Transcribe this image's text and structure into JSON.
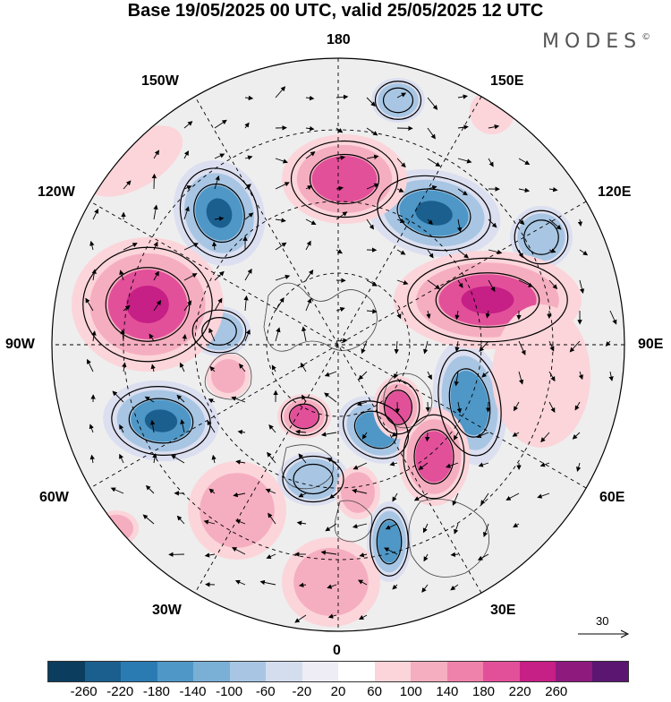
{
  "title": "Base 19/05/2025 00 UTC, valid 25/05/2025 12 UTC",
  "brand": "MODES",
  "brand_mark": "©",
  "longitude_labels": {
    "top": "180",
    "bottom": "0",
    "left": "90W",
    "right": "90E",
    "upper_left_1": "150W",
    "upper_left_2": "120W",
    "upper_right_1": "150E",
    "upper_right_2": "120E",
    "lower_left_1": "60W",
    "lower_left_2": "30W",
    "lower_right_1": "60E",
    "lower_right_2": "30E"
  },
  "wind_key": {
    "value": "30"
  },
  "colorbar": {
    "colors": [
      "#0b3d5e",
      "#1b5f8e",
      "#2b7bb3",
      "#4f97c6",
      "#7aafd6",
      "#a8c6e3",
      "#d3ddee",
      "#eeedf5",
      "#ffffff",
      "#fbd5da",
      "#f5aec0",
      "#ef82aa",
      "#e2509a",
      "#c61f85",
      "#8e1a7e",
      "#5a1670"
    ],
    "ticks": [
      "-260",
      "-220",
      "-180",
      "-140",
      "-100",
      "-60",
      "-20",
      "20",
      "60",
      "100",
      "140",
      "180",
      "220",
      "260"
    ]
  },
  "map_colors": {
    "background": "#eeeeee",
    "blue_strong": "#1b5f8e",
    "blue_mid": "#4f97c6",
    "blue_light": "#a8c6e3",
    "blue_faint": "#dcdff0",
    "pink_strong": "#c61f85",
    "pink_mid": "#e2509a",
    "pink_light": "#f5aec0",
    "pink_faint": "#fbd5da"
  }
}
